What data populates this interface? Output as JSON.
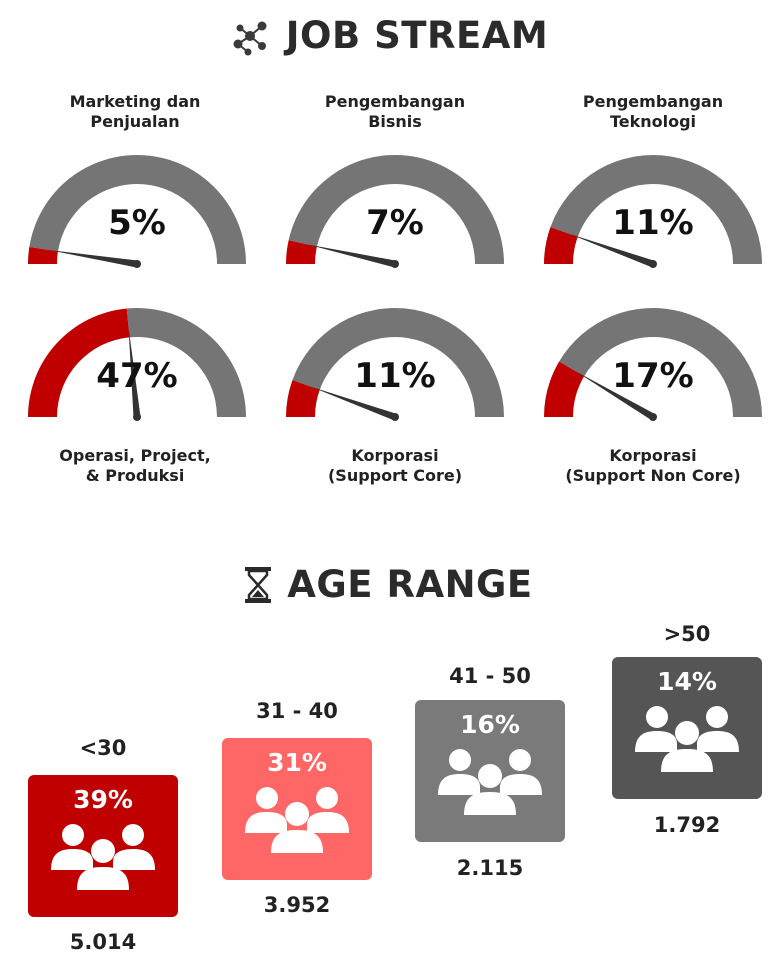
{
  "job_stream": {
    "title": "JOB STREAM",
    "icon": "network-people-icon",
    "gauges": [
      {
        "label_lines": [
          "Marketing dan",
          "Penjualan"
        ],
        "value": "5%",
        "fraction": 0.05
      },
      {
        "label_lines": [
          "Pengembangan",
          "Bisnis"
        ],
        "value": "7%",
        "fraction": 0.07
      },
      {
        "label_lines": [
          "Pengembangan",
          "Teknologi"
        ],
        "value": "11%",
        "fraction": 0.11
      },
      {
        "label_lines": [
          "Operasi, Project,",
          "& Produksi"
        ],
        "value": "47%",
        "fraction": 0.47
      },
      {
        "label_lines": [
          "Korporasi",
          "(Support Core)"
        ],
        "value": "11%",
        "fraction": 0.11
      },
      {
        "label_lines": [
          "Korporasi",
          "(Support Non Core)"
        ],
        "value": "17%",
        "fraction": 0.17
      }
    ],
    "colors": {
      "fill": "#c00000",
      "track": "#757575",
      "needle": "#333333"
    }
  },
  "age_range": {
    "title": "AGE RANGE",
    "icon": "hourglass-icon",
    "groups": [
      {
        "label": "<30",
        "percent": "39%",
        "count": "5.014",
        "color": "#c00000"
      },
      {
        "label": "31 - 40",
        "percent": "31%",
        "count": "3.952",
        "color": "#ff6666"
      },
      {
        "label": "41 - 50",
        "percent": "16%",
        "count": "2.115",
        "color": "#7a7a7a"
      },
      {
        "label": ">50",
        "percent": "14%",
        "count": "1.792",
        "color": "#555555"
      }
    ]
  }
}
